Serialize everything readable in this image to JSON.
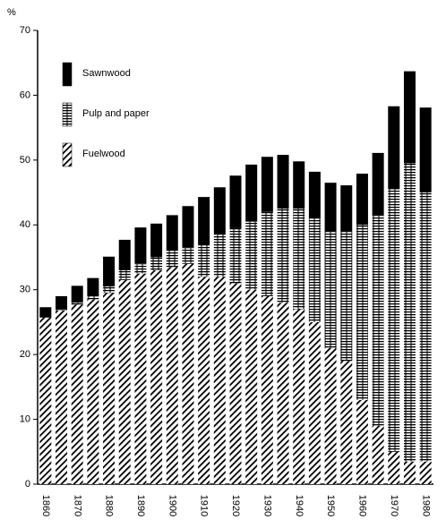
{
  "chart_data": {
    "type": "stacked-bar",
    "y_label": "%",
    "categories": [
      "1860",
      null,
      "1870",
      null,
      "1880",
      null,
      "1890",
      null,
      "1900",
      null,
      "1910",
      null,
      "1920",
      null,
      "1930",
      null,
      "1940",
      null,
      "1950",
      null,
      "1960",
      null,
      "1970",
      null,
      "1980"
    ],
    "series": [
      {
        "name": "Sawnwood",
        "color": "#000000",
        "pattern": "solid",
        "values": [
          1.6,
          2.0,
          2.6,
          2.8,
          4.6,
          4.7,
          5.6,
          5.2,
          5.5,
          6.4,
          7.3,
          7.3,
          8.1,
          8.8,
          8.5,
          8.3,
          7.3,
          7.2,
          7.5,
          7.1,
          7.9,
          9.6,
          12.8,
          14.2,
          13.1
        ]
      },
      {
        "name": "Pulp and paper",
        "color": "#000000",
        "pattern": "horizontal",
        "values": [
          0,
          0.2,
          0.3,
          0.5,
          1.0,
          1.5,
          1.5,
          2.0,
          2.5,
          2.5,
          5.0,
          6.5,
          8.5,
          10.5,
          13.0,
          14.5,
          15.5,
          16.0,
          18.0,
          20.0,
          27.0,
          32.5,
          40.5,
          46.0,
          41.5
        ]
      },
      {
        "name": "Fuelwood",
        "color": "#000000",
        "pattern": "diagonal",
        "values": [
          25.7,
          26.8,
          27.7,
          28.5,
          29.5,
          31.5,
          32.5,
          33.0,
          33.5,
          34.0,
          32.0,
          32.0,
          31.0,
          30.0,
          29.0,
          28.0,
          27.0,
          25.0,
          21.0,
          19.0,
          13.0,
          9.0,
          5.0,
          3.5,
          3.5
        ]
      }
    ],
    "ylim": [
      0,
      70
    ],
    "yticks": [
      0,
      10,
      20,
      30,
      40,
      50,
      60,
      70
    ],
    "legend": "top-left",
    "grid": false
  }
}
